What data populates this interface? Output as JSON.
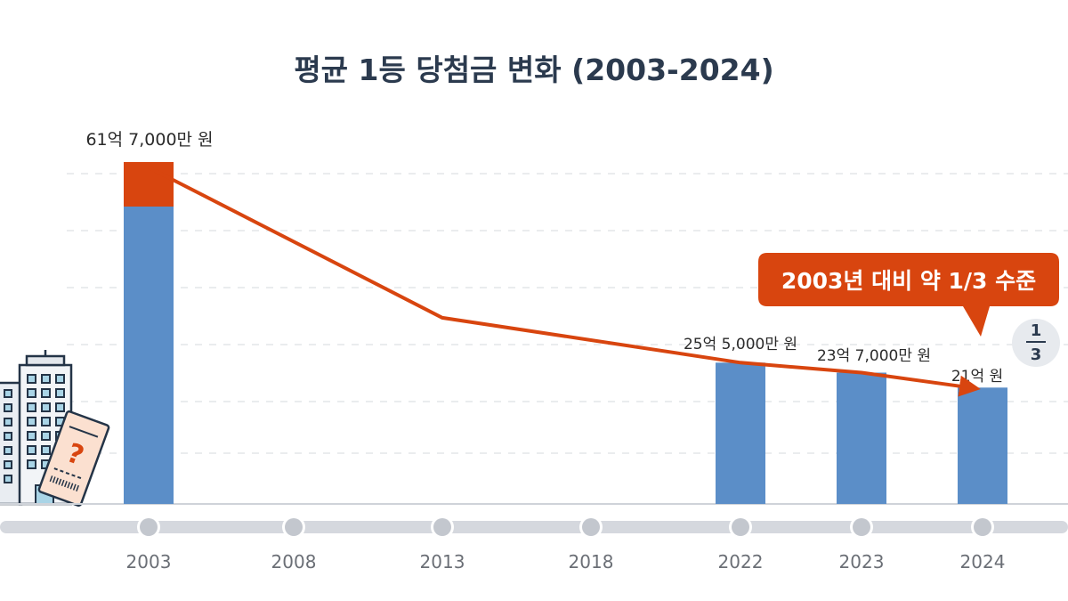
{
  "chart_data": {
    "type": "bar",
    "title": "평균 1등 당첨금 변화 (2003-2024)",
    "categories": [
      "2003",
      "2008",
      "2013",
      "2018",
      "2022",
      "2023",
      "2024"
    ],
    "unit": "억 원",
    "bars": [
      {
        "category": "2003",
        "value": 61.7,
        "label": "61억 7,000만 원"
      },
      {
        "category": "2022",
        "value": 25.5,
        "label": "25억 5,000만 원"
      },
      {
        "category": "2023",
        "value": 23.7,
        "label": "23억 7,000만 원"
      },
      {
        "category": "2024",
        "value": 21,
        "label": "21억 원"
      }
    ],
    "trend_line": [
      {
        "category": "2003",
        "value": 61.7
      },
      {
        "category": "2013",
        "value": 33.6
      },
      {
        "category": "2022",
        "value": 25.5
      },
      {
        "category": "2023",
        "value": 23.7
      },
      {
        "category": "2024",
        "value": 21
      }
    ],
    "ylim": [
      0,
      62
    ],
    "grid": true,
    "annotation": "2003년 대비 약 1/3 수준",
    "fraction_badge": {
      "numerator": "1",
      "denominator": "3"
    },
    "colors": {
      "bar": "#5b8ec8",
      "highlight": "#d8450f",
      "line": "#d8450f",
      "title": "#2b3a4e",
      "timeline": "#d5d8de",
      "tick_label": "#6b6f76"
    }
  }
}
